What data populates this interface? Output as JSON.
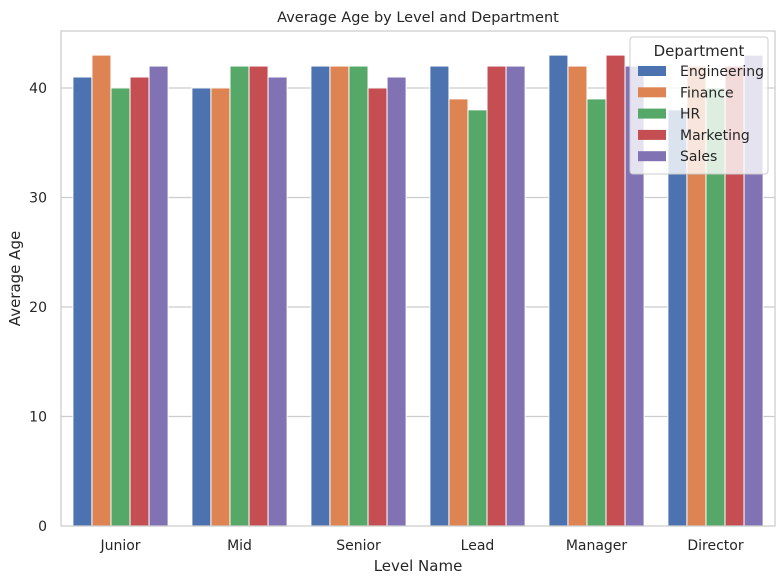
{
  "chart_data": {
    "type": "bar",
    "title": "Average Age by Level and Department",
    "xlabel": "Level Name",
    "ylabel": "Average Age",
    "ylim": [
      0,
      45.2
    ],
    "yticks": [
      0,
      10,
      20,
      30,
      40
    ],
    "grid": "horizontal",
    "legend_position": "top-right",
    "legend_title": "Department",
    "categories": [
      "Junior",
      "Mid",
      "Senior",
      "Lead",
      "Manager",
      "Director"
    ],
    "series": [
      {
        "name": "Engineering",
        "color": "#4c72b0",
        "values": [
          41,
          40,
          42,
          42,
          43,
          38
        ]
      },
      {
        "name": "Finance",
        "color": "#dd8452",
        "values": [
          43,
          40,
          42,
          39,
          42,
          42
        ]
      },
      {
        "name": "HR",
        "color": "#55a868",
        "values": [
          40,
          42,
          42,
          38,
          39,
          40
        ]
      },
      {
        "name": "Marketing",
        "color": "#c44e52",
        "values": [
          41,
          42,
          40,
          42,
          43,
          42
        ]
      },
      {
        "name": "Sales",
        "color": "#8172b3",
        "values": [
          42,
          41,
          41,
          42,
          42,
          43
        ]
      }
    ]
  }
}
